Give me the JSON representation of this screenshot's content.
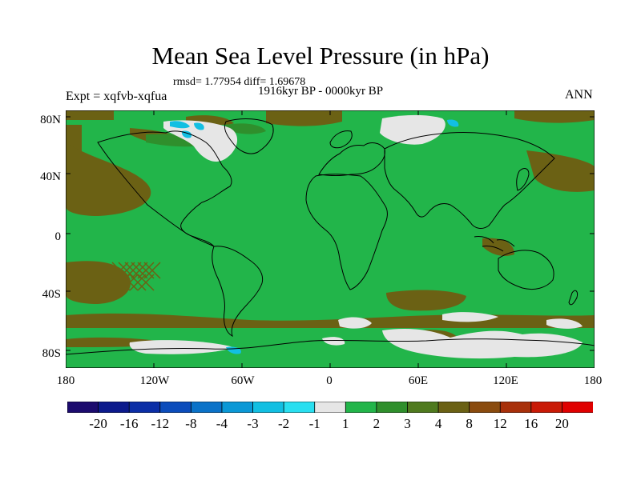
{
  "title": "Mean Sea Level Pressure (in hPa)",
  "stats": "rmsd= 1.77954 diff= 1.69678",
  "period": "1916kyr BP - 0000kyr BP",
  "experiment": "Expt = xqfvb-xqfua",
  "season": "ANN",
  "lat_labels": [
    "80N",
    "40N",
    "0",
    "40S",
    "80S"
  ],
  "lon_labels": [
    "180",
    "120W",
    "60W",
    "0",
    "60E",
    "120E",
    "180"
  ],
  "colorbar": {
    "labels": [
      "-20",
      "-16",
      "-12",
      "-8",
      "-4",
      "-3",
      "-2",
      "-1",
      "1",
      "2",
      "3",
      "4",
      "8",
      "12",
      "16",
      "20"
    ],
    "colors": [
      "#1c0b6e",
      "#0c1a8c",
      "#0b2ea6",
      "#0b4cbb",
      "#0a72c8",
      "#0a98d6",
      "#12bfe2",
      "#29dff0",
      "#e6e6e6",
      "#22b54a",
      "#2f8f2c",
      "#4f7a1e",
      "#6b6114",
      "#8a4b0e",
      "#a8300a",
      "#c91a06",
      "#e00000"
    ]
  },
  "colors": {
    "background_green": "#22b54a",
    "positive_brown": "#6b6114",
    "dark_green": "#2f8f2c",
    "near_zero": "#e6e6e6",
    "negative_blue": "#12bfe2",
    "coastline": "#000000"
  }
}
